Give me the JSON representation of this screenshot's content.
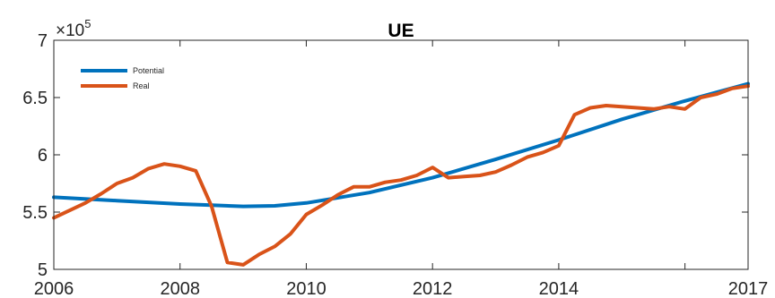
{
  "chart_data": {
    "type": "line",
    "title": "UE",
    "xlabel": "",
    "ylabel": "",
    "xlim": [
      2006,
      2017
    ],
    "ylim": [
      5,
      7
    ],
    "y_multiplier_label": "×10",
    "y_multiplier_exponent": "5",
    "x_ticks": [
      2006,
      2008,
      2010,
      2012,
      2014,
      2016,
      2017
    ],
    "x_tick_labels": [
      "2006",
      "2008",
      "2010",
      "2012",
      "2014",
      "",
      "2017"
    ],
    "y_ticks": [
      5,
      5.5,
      6,
      6.5,
      7
    ],
    "y_tick_labels": [
      "5",
      "5.5",
      "6",
      "6.5",
      "7"
    ],
    "grid": false,
    "legend_position": "top-left",
    "series": [
      {
        "name": "Potential",
        "color": "#0072BD",
        "x": [
          2006,
          2007,
          2008,
          2008.5,
          2009,
          2009.5,
          2010,
          2011,
          2012,
          2013,
          2014,
          2015,
          2016,
          2017
        ],
        "y": [
          5.63,
          5.6,
          5.57,
          5.56,
          5.55,
          5.555,
          5.58,
          5.67,
          5.8,
          5.96,
          6.13,
          6.31,
          6.47,
          6.62
        ]
      },
      {
        "name": "Real",
        "color": "#D95319",
        "x": [
          2006,
          2006.5,
          2006.75,
          2007,
          2007.25,
          2007.5,
          2007.75,
          2008,
          2008.25,
          2008.5,
          2008.75,
          2009,
          2009.25,
          2009.5,
          2009.75,
          2010,
          2010.25,
          2010.5,
          2010.75,
          2011,
          2011.25,
          2011.5,
          2011.75,
          2012,
          2012.25,
          2012.5,
          2012.75,
          2013,
          2013.25,
          2013.5,
          2013.75,
          2014,
          2014.25,
          2014.5,
          2014.75,
          2015,
          2015.25,
          2015.5,
          2015.75,
          2016,
          2016.25,
          2016.5,
          2016.75,
          2017
        ],
        "y": [
          5.45,
          5.58,
          5.66,
          5.75,
          5.8,
          5.88,
          5.92,
          5.9,
          5.86,
          5.55,
          5.06,
          5.04,
          5.13,
          5.2,
          5.31,
          5.48,
          5.56,
          5.65,
          5.72,
          5.72,
          5.76,
          5.78,
          5.82,
          5.89,
          5.8,
          5.81,
          5.82,
          5.85,
          5.91,
          5.98,
          6.02,
          6.08,
          6.35,
          6.41,
          6.43,
          6.42,
          6.41,
          6.4,
          6.42,
          6.4,
          6.5,
          6.53,
          6.58,
          6.6
        ]
      }
    ]
  }
}
